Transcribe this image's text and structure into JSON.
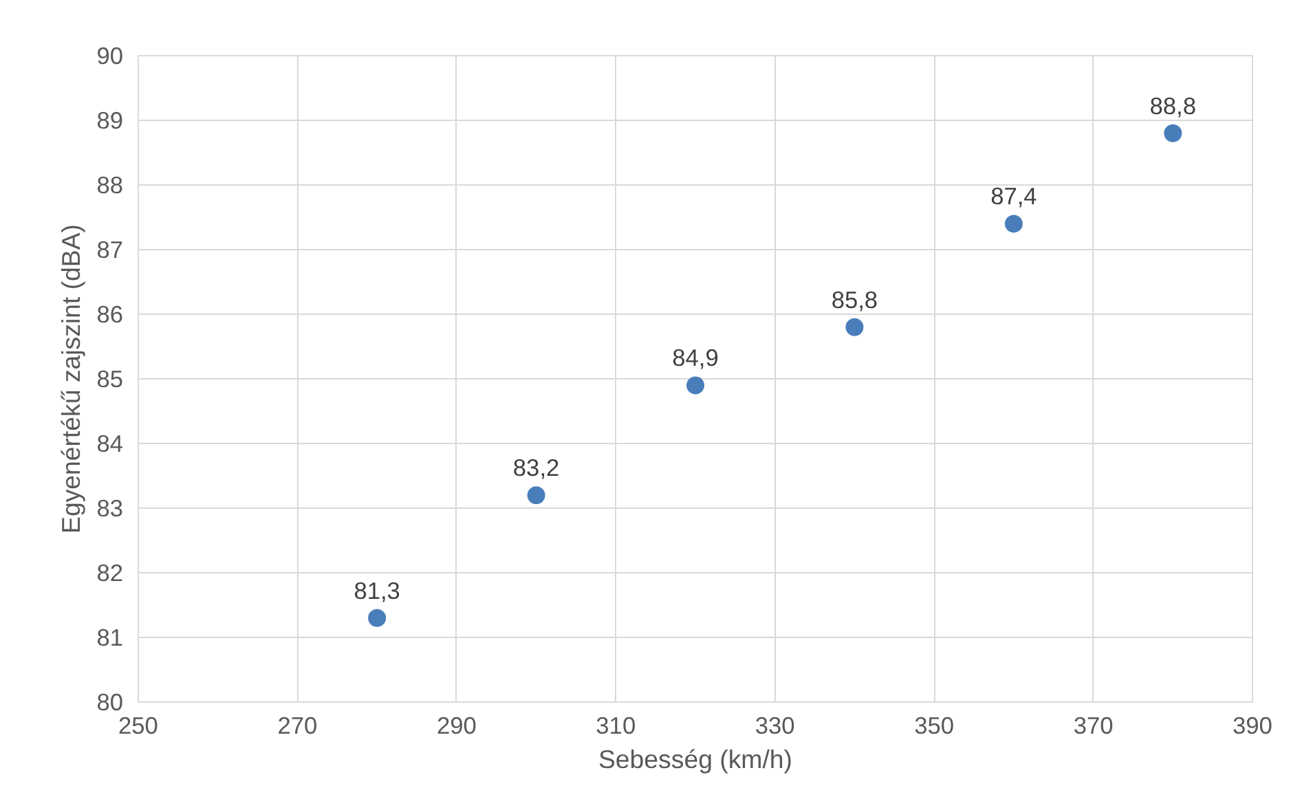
{
  "chart_data": {
    "type": "scatter",
    "xlabel": "Sebesség (km/h)",
    "ylabel": "Egyenértékű zajszint (dBA)",
    "x": [
      280,
      300,
      320,
      340,
      360,
      380
    ],
    "series": [
      {
        "color": "#4a7ebb",
        "values": [
          81.3,
          83.2,
          84.9,
          85.8,
          87.4,
          88.8
        ],
        "value_labels": [
          "81,3",
          "83,2",
          "84,9",
          "85,8",
          "87,4",
          "88,8"
        ]
      }
    ],
    "xlim": [
      250,
      390
    ],
    "xticks": [
      250,
      270,
      290,
      310,
      330,
      350,
      370,
      390
    ],
    "ylim": [
      80,
      90
    ],
    "yticks": [
      80,
      81,
      82,
      83,
      84,
      85,
      86,
      87,
      88,
      89,
      90
    ],
    "grid": true,
    "marker": "circle"
  }
}
